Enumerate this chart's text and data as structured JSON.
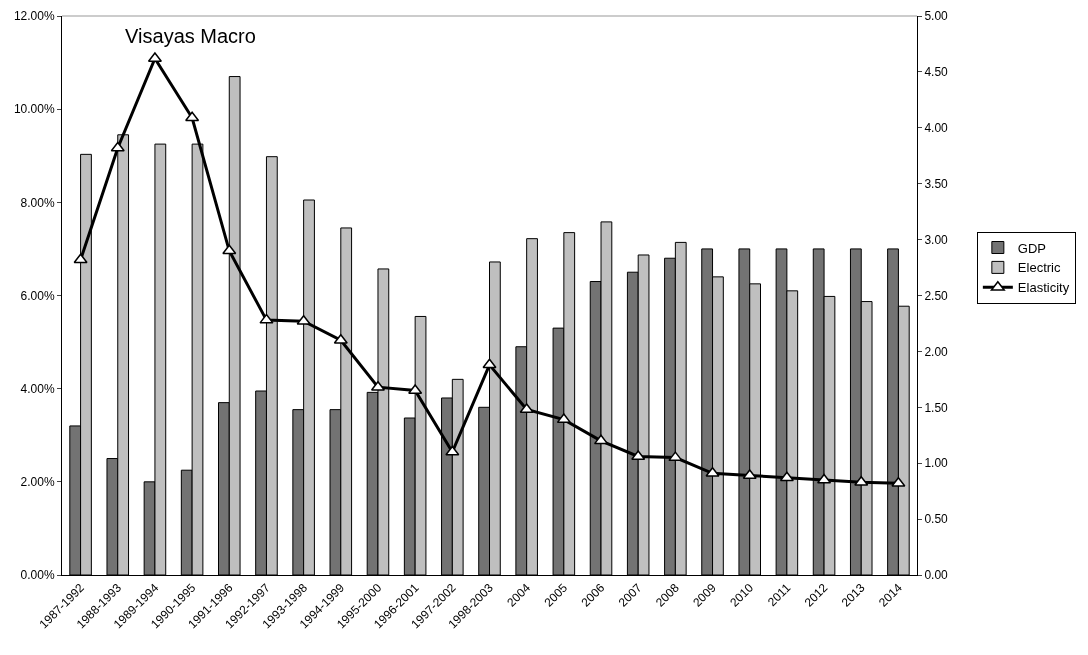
{
  "chart_data": {
    "type": "bar",
    "title": "Visayas Macro",
    "categories": [
      "1987-1992",
      "1988-1993",
      "1989-1994",
      "1990-1995",
      "1991-1996",
      "1992-1997",
      "1993-1998",
      "1994-1999",
      "1995-2000",
      "1996-2001",
      "1997-2002",
      "1998-2003",
      "2004",
      "2005",
      "2006",
      "2007",
      "2008",
      "2009",
      "2010",
      "2011",
      "2012",
      "2013",
      "2014"
    ],
    "series": [
      {
        "name": "GDP",
        "color": "#737373",
        "values": [
          3.2,
          2.5,
          2.0,
          2.25,
          3.7,
          3.95,
          3.55,
          3.55,
          3.92,
          3.37,
          3.8,
          3.6,
          4.9,
          5.3,
          6.3,
          6.5,
          6.8,
          7.0,
          7.0,
          7.0,
          7.0,
          7.0,
          7.0
        ]
      },
      {
        "name": "Electric",
        "color": "#bfbfbf",
        "values": [
          9.03,
          9.45,
          9.25,
          9.25,
          10.7,
          8.98,
          8.05,
          7.45,
          6.57,
          5.55,
          4.2,
          6.72,
          7.22,
          7.35,
          7.58,
          6.87,
          7.14,
          6.4,
          6.25,
          6.1,
          5.98,
          5.87,
          5.77
        ]
      },
      {
        "name": "Elasticity",
        "type": "line",
        "axis": "y2",
        "color": "#000000",
        "values": [
          2.82,
          3.82,
          4.62,
          4.09,
          2.9,
          2.28,
          2.27,
          2.1,
          1.68,
          1.65,
          1.1,
          1.88,
          1.48,
          1.39,
          1.2,
          1.06,
          1.05,
          0.91,
          0.89,
          0.87,
          0.85,
          0.83,
          0.82
        ]
      }
    ],
    "ylim": [
      0,
      12
    ],
    "yticks": [
      {
        "value": 0,
        "label": "0.00%"
      },
      {
        "value": 2,
        "label": "2.00%"
      },
      {
        "value": 4,
        "label": "4.00%"
      },
      {
        "value": 6,
        "label": "6.00%"
      },
      {
        "value": 8,
        "label": "8.00%"
      },
      {
        "value": 10,
        "label": "10.00%"
      },
      {
        "value": 12,
        "label": "12.00%"
      }
    ],
    "y2lim": [
      0,
      5
    ],
    "y2ticks": [
      {
        "value": 0,
        "label": "0.00"
      },
      {
        "value": 0.5,
        "label": "0.50"
      },
      {
        "value": 1,
        "label": "1.00"
      },
      {
        "value": 1.5,
        "label": "1.50"
      },
      {
        "value": 2,
        "label": "2.00"
      },
      {
        "value": 2.5,
        "label": "2.50"
      },
      {
        "value": 3,
        "label": "3.00"
      },
      {
        "value": 3.5,
        "label": "3.50"
      },
      {
        "value": 4,
        "label": "4.00"
      },
      {
        "value": 4.5,
        "label": "4.50"
      },
      {
        "value": 5,
        "label": "5.00"
      }
    ],
    "marker": "triangle",
    "line_style": "solid",
    "grid": false,
    "legend": "right"
  }
}
